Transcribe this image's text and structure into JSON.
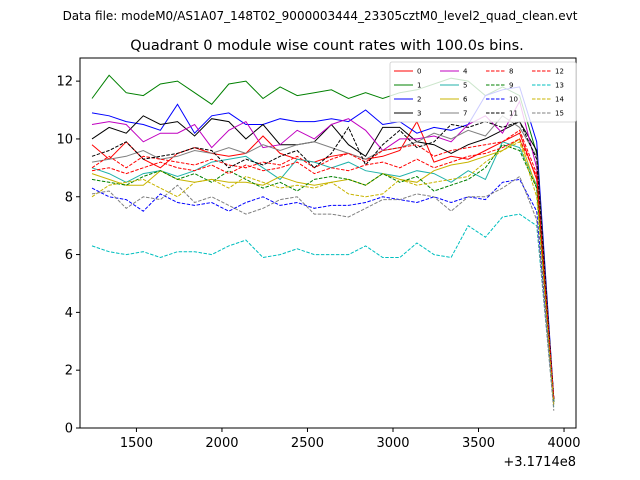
{
  "figure": {
    "suptitle": "Data file: modeM0/AS1A07_148T02_9000003444_23305cztM0_level2_quad_clean.evt",
    "title": "Quadrant 0 module wise count rates with 100.0s bins.",
    "x_offset_label": "+3.1714e8"
  },
  "chart_data": {
    "type": "line",
    "title": "Quadrant 0 module wise count rates with 100.0s bins.",
    "xlabel": "",
    "ylabel": "",
    "x_offset": 317140000,
    "xlim": [
      1170,
      4070
    ],
    "ylim": [
      0,
      12.8
    ],
    "xticks": [
      1500,
      2000,
      2500,
      3000,
      3500,
      4000
    ],
    "yticks": [
      0,
      2,
      4,
      6,
      8,
      10,
      12
    ],
    "grid": false,
    "legend_position": "top-right",
    "legend_columns": 4,
    "x": [
      1240,
      1340,
      1440,
      1540,
      1640,
      1740,
      1840,
      1940,
      2040,
      2140,
      2240,
      2340,
      2440,
      2540,
      2640,
      2740,
      2840,
      2940,
      3040,
      3140,
      3240,
      3340,
      3440,
      3540,
      3640,
      3740,
      3840,
      3940
    ],
    "series": [
      {
        "name": "0",
        "color": "#ff0000",
        "dash": "solid",
        "values": [
          9.8,
          9.3,
          9.9,
          9.3,
          9.0,
          9.5,
          9.7,
          9.5,
          9.4,
          9.5,
          10.1,
          9.5,
          9.3,
          9.2,
          9.4,
          9.5,
          9.3,
          9.4,
          9.6,
          10.6,
          9.2,
          9.4,
          9.3,
          9.6,
          9.9,
          10.2,
          8.6,
          1.0
        ]
      },
      {
        "name": "1",
        "color": "#008000",
        "dash": "solid",
        "values": [
          11.4,
          12.2,
          11.6,
          11.5,
          11.9,
          12.0,
          11.6,
          11.2,
          11.9,
          12.0,
          11.4,
          11.8,
          11.5,
          11.6,
          11.7,
          11.4,
          11.6,
          11.4,
          11.6,
          11.7,
          11.9,
          12.1,
          12.0,
          11.5,
          11.8,
          11.5,
          9.5,
          1.0
        ]
      },
      {
        "name": "2",
        "color": "#0000ff",
        "dash": "solid",
        "values": [
          10.9,
          10.8,
          10.6,
          10.5,
          10.3,
          11.2,
          10.2,
          10.8,
          10.9,
          10.5,
          10.5,
          10.7,
          10.6,
          10.6,
          10.7,
          10.6,
          11.0,
          10.5,
          10.6,
          10.2,
          10.4,
          10.3,
          10.5,
          11.5,
          11.7,
          11.8,
          9.9,
          1.0
        ]
      },
      {
        "name": "3",
        "color": "#000000",
        "dash": "solid",
        "values": [
          10.0,
          10.4,
          10.2,
          10.8,
          10.5,
          10.6,
          10.1,
          10.7,
          10.6,
          10.0,
          10.5,
          9.8,
          9.8,
          9.9,
          10.5,
          9.8,
          9.4,
          10.4,
          10.4,
          9.9,
          9.8,
          9.5,
          9.8,
          10.0,
          10.3,
          10.6,
          9.6,
          0.9
        ]
      },
      {
        "name": "4",
        "color": "#c000c0",
        "dash": "solid",
        "values": [
          10.5,
          10.6,
          10.5,
          9.9,
          10.2,
          10.2,
          10.5,
          9.7,
          10.3,
          10.6,
          9.7,
          9.8,
          10.3,
          10.0,
          10.5,
          10.7,
          10.3,
          9.6,
          10.0,
          10.0,
          10.1,
          9.9,
          10.5,
          10.8,
          10.2,
          11.3,
          9.0,
          1.0
        ]
      },
      {
        "name": "5",
        "color": "#20b2aa",
        "dash": "solid",
        "values": [
          9.0,
          8.8,
          8.5,
          8.8,
          8.9,
          8.7,
          8.9,
          9.2,
          9.3,
          9.4,
          9.0,
          8.6,
          9.3,
          9.2,
          9.0,
          9.2,
          8.9,
          8.8,
          8.7,
          8.9,
          8.8,
          8.5,
          8.9,
          8.6,
          9.9,
          9.7,
          8.4,
          0.9
        ]
      },
      {
        "name": "6",
        "color": "#c8b400",
        "dash": "solid",
        "values": [
          8.8,
          8.6,
          8.4,
          8.4,
          8.9,
          8.6,
          8.5,
          8.6,
          8.5,
          8.5,
          8.4,
          8.7,
          8.5,
          8.4,
          8.5,
          8.6,
          8.4,
          8.8,
          8.6,
          8.5,
          8.9,
          9.1,
          9.2,
          9.4,
          9.6,
          10.0,
          8.3,
          0.9
        ]
      },
      {
        "name": "7",
        "color": "#808080",
        "dash": "solid",
        "values": [
          9.2,
          9.3,
          9.4,
          9.6,
          9.3,
          9.4,
          9.6,
          9.5,
          9.7,
          9.5,
          9.8,
          9.6,
          9.8,
          9.9,
          9.7,
          9.5,
          9.3,
          9.6,
          9.7,
          9.9,
          10.2,
          10.0,
          10.3,
          10.1,
          10.8,
          10.4,
          9.4,
          0.9
        ]
      },
      {
        "name": "8",
        "color": "#ff0000",
        "dash": "dashed",
        "values": [
          9.0,
          9.4,
          9.0,
          9.4,
          9.3,
          9.2,
          9.1,
          9.3,
          9.1,
          9.0,
          9.2,
          9.1,
          9.4,
          9.0,
          9.3,
          9.5,
          9.2,
          9.6,
          9.7,
          9.8,
          9.4,
          9.6,
          9.7,
          9.8,
          9.9,
          10.3,
          8.8,
          1.0
        ]
      },
      {
        "name": "9",
        "color": "#008000",
        "dash": "dashed",
        "values": [
          8.6,
          8.5,
          8.4,
          8.7,
          8.9,
          8.6,
          8.8,
          8.5,
          8.9,
          8.6,
          8.3,
          8.5,
          8.2,
          8.6,
          8.7,
          8.6,
          8.4,
          8.8,
          8.5,
          8.7,
          8.2,
          8.4,
          8.6,
          9.0,
          9.8,
          9.6,
          8.3,
          0.9
        ]
      },
      {
        "name": "10",
        "color": "#0000ff",
        "dash": "dashed",
        "values": [
          8.3,
          8.0,
          7.9,
          7.5,
          8.1,
          7.8,
          7.7,
          7.8,
          7.5,
          7.8,
          8.0,
          7.7,
          7.8,
          7.6,
          7.7,
          7.7,
          7.8,
          8.0,
          7.9,
          7.8,
          8.0,
          7.8,
          8.0,
          7.9,
          8.5,
          8.6,
          7.5,
          0.8
        ]
      },
      {
        "name": "11",
        "color": "#000000",
        "dash": "dashed",
        "values": [
          9.4,
          9.6,
          9.9,
          9.3,
          9.4,
          9.5,
          9.7,
          9.6,
          9.0,
          9.3,
          9.1,
          9.4,
          9.6,
          9.0,
          9.5,
          10.4,
          9.1,
          9.8,
          10.3,
          9.7,
          9.9,
          10.5,
          10.4,
          10.6,
          10.4,
          10.6,
          9.3,
          1.0
        ]
      },
      {
        "name": "12",
        "color": "#ff0000",
        "dash": "dashed",
        "values": [
          8.9,
          9.0,
          8.8,
          9.0,
          9.2,
          9.0,
          8.9,
          9.1,
          8.8,
          9.1,
          8.9,
          9.0,
          9.2,
          8.8,
          9.0,
          8.9,
          9.1,
          9.2,
          9.0,
          9.3,
          9.0,
          9.2,
          9.4,
          9.5,
          9.7,
          10.0,
          8.7,
          1.0
        ]
      },
      {
        "name": "13",
        "color": "#00bfbf",
        "dash": "dashed",
        "values": [
          6.3,
          6.1,
          6.0,
          6.1,
          5.9,
          6.1,
          6.1,
          6.0,
          6.3,
          6.5,
          5.9,
          6.0,
          6.2,
          6.0,
          6.0,
          6.0,
          6.3,
          5.9,
          5.9,
          6.4,
          6.0,
          5.9,
          7.0,
          6.6,
          7.3,
          7.4,
          7.0,
          0.7
        ]
      },
      {
        "name": "14",
        "color": "#c8b400",
        "dash": "dashed",
        "values": [
          8.0,
          8.4,
          8.5,
          8.6,
          8.3,
          8.0,
          8.5,
          8.6,
          8.3,
          8.7,
          8.5,
          8.3,
          8.4,
          8.3,
          8.5,
          8.1,
          8.0,
          8.1,
          8.6,
          8.4,
          8.5,
          8.6,
          8.7,
          9.2,
          9.6,
          9.9,
          8.0,
          0.8
        ]
      },
      {
        "name": "15",
        "color": "#808080",
        "dash": "dashed",
        "values": [
          8.1,
          8.2,
          7.6,
          8.0,
          7.9,
          8.4,
          7.8,
          8.0,
          7.7,
          7.4,
          7.6,
          7.9,
          8.0,
          7.4,
          7.4,
          7.3,
          7.6,
          7.9,
          7.9,
          8.1,
          8.0,
          7.5,
          8.0,
          8.0,
          8.3,
          8.7,
          7.2,
          0.6
        ]
      }
    ]
  }
}
